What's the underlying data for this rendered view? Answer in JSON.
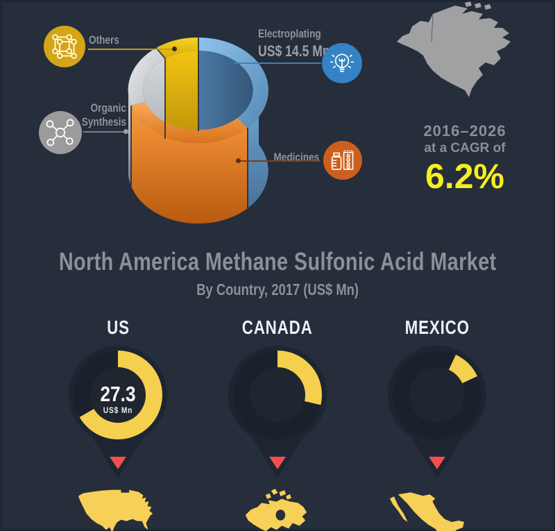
{
  "title": "North America Methane Sulfonic Acid Market",
  "subtitle": "By Country, 2017 (US$ Mn)",
  "cagr": {
    "period": "2016–2026",
    "lead": "at a CAGR of",
    "value": "6.2%"
  },
  "legend": {
    "others": {
      "label": "Others"
    },
    "organic": {
      "label": "Organic Synthesis"
    },
    "electroplating": {
      "label": "Electroplating",
      "value": "US$ 14.5 Mn"
    },
    "medicines": {
      "label": "Medicines"
    }
  },
  "countries": [
    {
      "name": "US",
      "value": "27.3",
      "unit": "US$ Mn",
      "arc_start_deg": 0,
      "arc_sweep_deg": 240
    },
    {
      "name": "CANADA",
      "value": "",
      "unit": "",
      "arc_start_deg": 0,
      "arc_sweep_deg": 103
    },
    {
      "name": "MEXICO",
      "value": "",
      "unit": "",
      "arc_start_deg": 25,
      "arc_sweep_deg": 40
    }
  ],
  "colors": {
    "background": "#262d3b",
    "accent_yellow": "#f5d04e",
    "map_yellow": "#f7d057",
    "cagr_yellow": "#f6ef1f",
    "red_marker": "#f24e4e",
    "title_gray": "#8b919b",
    "label_gray": "#8d939d",
    "country_white": "#edf0f3",
    "na_map_gray": "#a0a1a3",
    "pin_body": "#1e2532",
    "pin_track": "#1a202c",
    "pin_disc": "#20262f",
    "icon_others_bg": "#d4a517",
    "icon_organic_bg": "#9b9b9b",
    "icon_electroplating_bg": "#3583c4",
    "icon_medicines_bg": "#cc5f1d",
    "line_others": "#c79a12",
    "line_organic": "#7c828c",
    "line_electroplating": "#3f80b8",
    "line_medicines": "#7a3d18",
    "seg_others": "#e9ba10",
    "seg_electroplating": "#76a9d4",
    "seg_medicines": "#e8882f",
    "seg_organic_synthesis": "#cfd1d3"
  },
  "chart_data": [
    {
      "type": "pie",
      "subtype": "3d-ring",
      "legend_position": "around",
      "segments": [
        {
          "label": "Electroplating",
          "value_label": "US$ 14.5 Mn",
          "color": "#76a9d4",
          "approx_sweep_deg": 135
        },
        {
          "label": "Medicines",
          "value_label": "",
          "color": "#e8882f",
          "approx_sweep_deg": 118
        },
        {
          "label": "Organic Synthesis",
          "value_label": "",
          "color": "#cfd1d3",
          "approx_sweep_deg": 70
        },
        {
          "label": "Others",
          "value_label": "",
          "color": "#e9ba10",
          "approx_sweep_deg": 37
        }
      ]
    },
    {
      "type": "pie",
      "subtype": "donut-gauges",
      "title": "North America Methane Sulfonic Acid Market",
      "subtitle": "By Country, 2017 (US$ Mn)",
      "categories": [
        "US",
        "CANADA",
        "MEXICO"
      ],
      "values": [
        27.3,
        null,
        null
      ],
      "unit": "US$ Mn",
      "arc_degrees": [
        240,
        103,
        40
      ],
      "arc_start_degrees": [
        0,
        0,
        25
      ]
    }
  ]
}
